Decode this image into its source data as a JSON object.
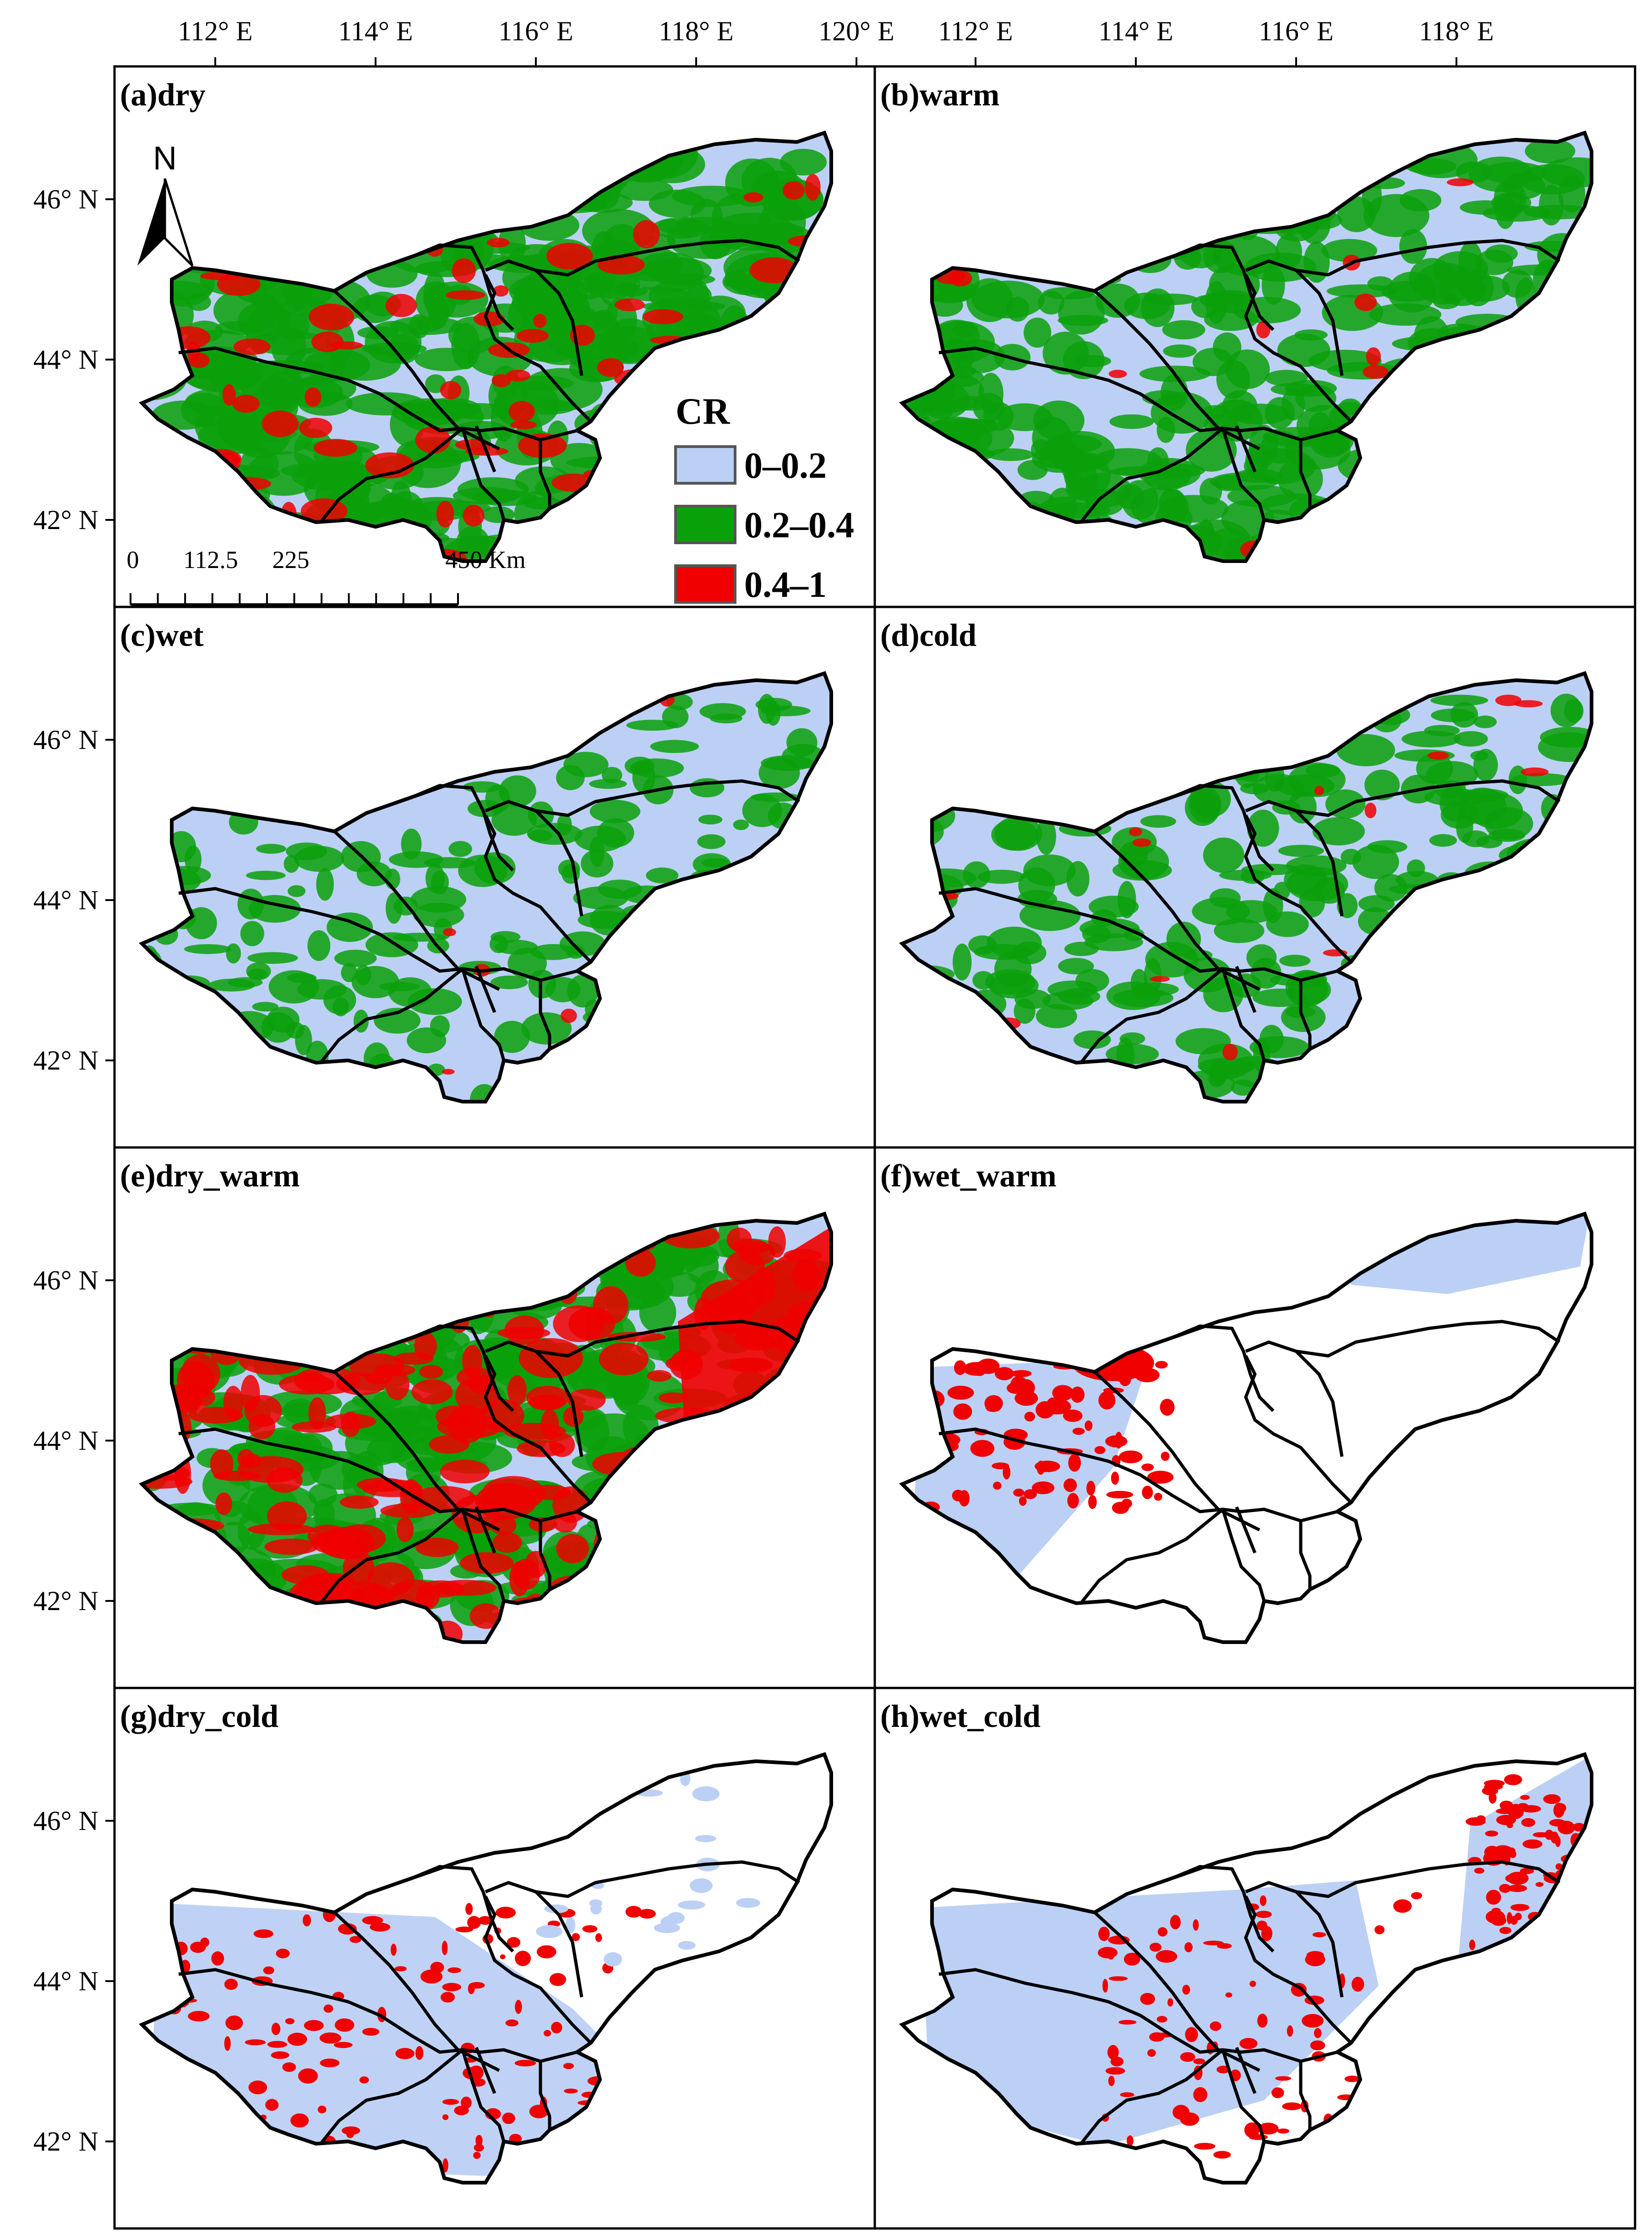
{
  "figure": {
    "top_axis_labels": [
      "112° E",
      "114° E",
      "116° E",
      "118° E",
      "120° E",
      "112° E",
      "114° E",
      "116° E",
      "118° E"
    ],
    "left_axis_labels": [
      "46° N",
      "44° N",
      "42° N"
    ],
    "panels": [
      {
        "id": "a",
        "label": "(a)dry"
      },
      {
        "id": "b",
        "label": "(b)warm"
      },
      {
        "id": "c",
        "label": "(c)wet"
      },
      {
        "id": "d",
        "label": "(d)cold"
      },
      {
        "id": "e",
        "label": "(e)dry_warm"
      },
      {
        "id": "f",
        "label": "(f)wet_warm"
      },
      {
        "id": "g",
        "label": "(g)dry_cold"
      },
      {
        "id": "h",
        "label": "(h)wet_cold"
      }
    ],
    "legend": {
      "title": "CR",
      "items": [
        {
          "label": "0–0.2",
          "color": "#bcd0f5"
        },
        {
          "label": "0.2–0.4",
          "color": "#0aa00a"
        },
        {
          "label": "0.4–1",
          "color": "#f00000"
        }
      ]
    },
    "scale_bar": {
      "labels": [
        "0",
        "112.5",
        "225",
        "450 Km"
      ]
    },
    "north_arrow": {
      "label": "N"
    },
    "colors": {
      "low": "#bcd0f5",
      "mid": "#0aa00a",
      "high": "#f00000",
      "boundary": "#000000"
    }
  }
}
